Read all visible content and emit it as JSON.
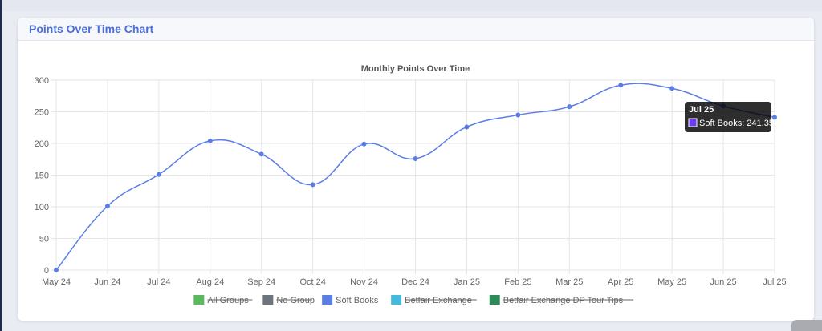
{
  "card": {
    "title": "Points Over Time Chart"
  },
  "tooltip": {
    "title": "Jul 25",
    "body": "Soft Books: 241.35"
  },
  "colors": {
    "line": "#5b7ee6",
    "grid": "#e6e6e6",
    "axis_text": "#666666"
  },
  "chart_data": {
    "type": "line",
    "title": "Monthly Points Over Time",
    "xlabel": "",
    "ylabel": "",
    "ylim": [
      0,
      300
    ],
    "yticks": [
      0,
      50,
      100,
      150,
      200,
      250,
      300
    ],
    "grid": true,
    "categories": [
      "May 24",
      "Jun 24",
      "Jul 24",
      "Aug 24",
      "Sep 24",
      "Oct 24",
      "Nov 24",
      "Dec 24",
      "Jan 25",
      "Feb 25",
      "Mar 25",
      "Apr 25",
      "May 25",
      "Jun 25",
      "Jul 25"
    ],
    "series": [
      {
        "name": "Soft Books",
        "color": "#5b7ee6",
        "values": [
          0,
          101,
          151,
          204,
          183,
          135,
          199,
          176,
          226,
          245,
          258,
          292,
          287,
          259,
          241.35
        ]
      }
    ],
    "legend": {
      "position": "bottom",
      "items": [
        {
          "label": "All Groups",
          "color": "#5cb85c",
          "hidden": true
        },
        {
          "label": "No Group",
          "color": "#6c757d",
          "hidden": true
        },
        {
          "label": "Soft Books",
          "color": "#5b7ee6",
          "hidden": false
        },
        {
          "label": "Betfair Exchange",
          "color": "#46b8da",
          "hidden": true
        },
        {
          "label": "Betfair Exchange DP Tour Tips",
          "color": "#2e8b57",
          "hidden": true
        }
      ]
    }
  }
}
